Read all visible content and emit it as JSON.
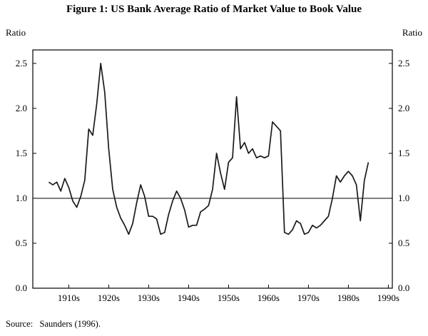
{
  "figure": {
    "title": "Figure 1: US Bank Average Ratio of Market Value to Book Value",
    "y_axis_label_left": "Ratio",
    "y_axis_label_right": "Ratio",
    "source": "Source:   Saunders (1996)."
  },
  "chart_data": {
    "type": "line",
    "title": "Figure 1: US Bank Average Ratio of Market Value to Book Value",
    "xlabel": "",
    "ylabel": "Ratio",
    "ylim": [
      0,
      2.65
    ],
    "xlim": [
      1906,
      1996
    ],
    "yticks": [
      0.0,
      0.5,
      1.0,
      1.5,
      2.0,
      2.5
    ],
    "xtick_positions": [
      1915,
      1925,
      1935,
      1945,
      1955,
      1965,
      1975,
      1985,
      1995
    ],
    "xtick_labels": [
      "1910s",
      "1920s",
      "1930s",
      "1940s",
      "1950s",
      "1960s",
      "1970s",
      "1980s",
      "1990s"
    ],
    "reference_line": 1.0,
    "line_color": "#1a1a1a",
    "frame_color": "#000000",
    "legend": "none",
    "grid": "off",
    "x": [
      1910,
      1911,
      1912,
      1913,
      1914,
      1915,
      1916,
      1917,
      1918,
      1919,
      1920,
      1921,
      1922,
      1923,
      1924,
      1925,
      1926,
      1927,
      1928,
      1929,
      1930,
      1931,
      1932,
      1933,
      1934,
      1935,
      1936,
      1937,
      1938,
      1939,
      1940,
      1941,
      1942,
      1943,
      1944,
      1945,
      1946,
      1947,
      1948,
      1949,
      1950,
      1951,
      1952,
      1953,
      1954,
      1955,
      1956,
      1957,
      1958,
      1959,
      1960,
      1961,
      1962,
      1963,
      1964,
      1965,
      1966,
      1967,
      1968,
      1969,
      1970,
      1971,
      1972,
      1973,
      1974,
      1975,
      1976,
      1977,
      1978,
      1979,
      1980,
      1981,
      1982,
      1983,
      1984,
      1985,
      1986,
      1987,
      1988,
      1989,
      1990
    ],
    "values": [
      1.18,
      1.15,
      1.18,
      1.08,
      1.22,
      1.12,
      0.97,
      0.9,
      1.02,
      1.2,
      1.77,
      1.7,
      2.05,
      2.5,
      2.18,
      1.55,
      1.1,
      0.9,
      0.78,
      0.7,
      0.6,
      0.72,
      0.95,
      1.15,
      1.02,
      0.8,
      0.8,
      0.77,
      0.6,
      0.62,
      0.82,
      0.97,
      1.08,
      1.0,
      0.87,
      0.68,
      0.7,
      0.7,
      0.85,
      0.88,
      0.92,
      1.1,
      1.5,
      1.28,
      1.1,
      1.4,
      1.45,
      2.13,
      1.55,
      1.62,
      1.5,
      1.55,
      1.45,
      1.47,
      1.45,
      1.47,
      1.85,
      1.8,
      1.75,
      0.62,
      0.6,
      0.65,
      0.75,
      0.72,
      0.6,
      0.62,
      0.7,
      0.67,
      0.7,
      0.75,
      0.8,
      1.0,
      1.25,
      1.18,
      1.25,
      1.3,
      1.25,
      1.15,
      0.75,
      1.2,
      1.4
    ]
  }
}
